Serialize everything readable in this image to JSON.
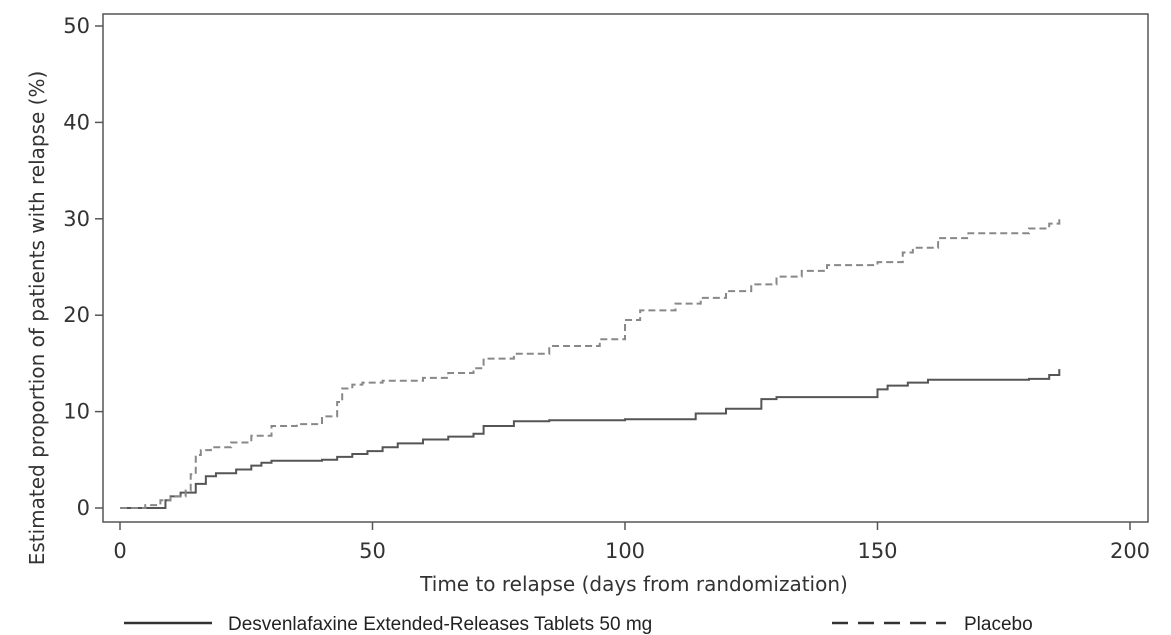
{
  "chart_data": {
    "type": "line",
    "title": "",
    "xlabel": "Time to relapse (days from randomization)",
    "ylabel": "Estimated proportion of patients with relapse (%)",
    "xlim": [
      0,
      200
    ],
    "ylim": [
      0,
      50
    ],
    "xticks": [
      0,
      50,
      100,
      150,
      200
    ],
    "yticks": [
      0,
      10,
      20,
      30,
      40,
      50
    ],
    "grid": false,
    "legend_position": "bottom",
    "series": [
      {
        "name": "Desvenlafaxine Extended-Releases Tablets 50 mg",
        "line_style": "solid",
        "color": "#555555",
        "x": [
          0,
          8,
          9,
          10,
          12,
          15,
          17,
          19,
          23,
          26,
          28,
          30,
          35,
          40,
          43,
          46,
          49,
          52,
          55,
          60,
          65,
          70,
          72,
          78,
          85,
          100,
          114,
          120,
          127,
          130,
          150,
          152,
          156,
          160,
          180,
          184,
          186
        ],
        "y": [
          0,
          0,
          0.8,
          1.2,
          1.6,
          2.5,
          3.3,
          3.6,
          4.0,
          4.4,
          4.7,
          4.9,
          4.9,
          5.0,
          5.3,
          5.6,
          5.9,
          6.3,
          6.7,
          7.1,
          7.4,
          7.7,
          8.5,
          9.0,
          9.1,
          9.2,
          9.8,
          10.3,
          11.3,
          11.5,
          12.3,
          12.7,
          13.0,
          13.3,
          13.4,
          13.8,
          14.4
        ]
      },
      {
        "name": "Placebo",
        "line_style": "dashed",
        "color": "#888888",
        "x": [
          0,
          5,
          8,
          10,
          13,
          14,
          15,
          16,
          18,
          22,
          26,
          30,
          35,
          40,
          43,
          44,
          46,
          48,
          52,
          60,
          65,
          70,
          72,
          78,
          85,
          95,
          100,
          103,
          110,
          115,
          120,
          125,
          130,
          135,
          140,
          150,
          155,
          157,
          162,
          168,
          180,
          184,
          186
        ],
        "y": [
          0,
          0.3,
          0.8,
          1.2,
          1.8,
          3.5,
          5.5,
          6.0,
          6.3,
          6.8,
          7.5,
          8.5,
          8.7,
          9.5,
          11.0,
          12.4,
          12.8,
          13.0,
          13.2,
          13.5,
          14.0,
          14.5,
          15.5,
          16.0,
          16.8,
          17.5,
          19.5,
          20.5,
          21.2,
          21.8,
          22.5,
          23.2,
          24.0,
          24.6,
          25.2,
          25.5,
          26.5,
          27.0,
          28.0,
          28.5,
          29.0,
          29.5,
          30.3
        ]
      }
    ]
  }
}
